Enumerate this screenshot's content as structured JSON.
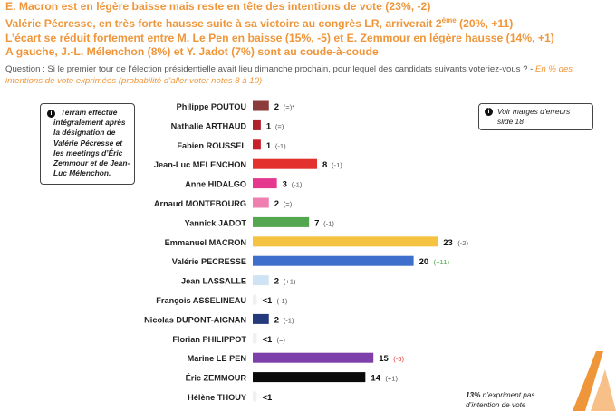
{
  "headline": {
    "line1": "E. Macron est en légère baisse mais reste en tête des intentions de vote (23%, -2)",
    "line2_prefix": "Valérie Pécresse, en très forte hausse suite à sa victoire au congrès LR, arriverait 2",
    "line2_sup": "ème",
    "line2_suffix": " (20%, +11)",
    "line3": "L’écart se réduit fortement entre M. Le Pen en baisse (15%, -5) et E. Zemmour en légère hausse  (14%, +1)",
    "line4": "A gauche, J.-L. Mélenchon (8%) et Y. Jadot (7%) sont au coude-à-coude"
  },
  "question": {
    "text": "Question : Si le premier tour de l’élection présidentielle avait lieu dimanche prochain, pour lequel des candidats suivants voteriez-vous ? - ",
    "subtext": "En % des intentions de vote exprimées (probabilité d’aller voter notes 8 à 10)"
  },
  "left_note": {
    "icon": "info-icon",
    "line1": "Terrain effectué",
    "line2": "intégralement après",
    "line3": "la désignation de",
    "line4": "Valérie Pécresse et",
    "line5": "les meetings d’Éric",
    "line6": "Zemmour et de Jean-",
    "line7": "Luc Mélenchon."
  },
  "right_note": {
    "icon": "info-icon",
    "line1": "Voir marges d’erreurs",
    "line2": "slide 18"
  },
  "bottom_note": {
    "bold": "13%",
    "text1": " n’expriment pas",
    "line2": "d’intention de vote"
  },
  "colors": {
    "headline": "#f0963a",
    "delta_positive": "#3aa640",
    "delta_negative": "#e0302c",
    "delta_neutral": "#555555"
  },
  "chart_data": {
    "type": "bar",
    "orientation": "horizontal",
    "categories": [
      "Philippe POUTOU",
      "Nathalie ARTHAUD",
      "Fabien ROUSSEL",
      "Jean-Luc MELENCHON",
      "Anne HIDALGO",
      "Arnaud MONTEBOURG",
      "Yannick JADOT",
      "Emmanuel MACRON",
      "Valérie PECRESSE",
      "Jean LASSALLE",
      "François ASSELINEAU",
      "Nicolas DUPONT-AIGNAN",
      "Florian PHILIPPOT",
      "Marine LE PEN",
      "Éric ZEMMOUR",
      "Hélène THOUY"
    ],
    "values": [
      2,
      1,
      1,
      8,
      3,
      2,
      7,
      23,
      20,
      2,
      0.5,
      2,
      0.5,
      15,
      14,
      0.5
    ],
    "value_labels": [
      "2",
      "1",
      "1",
      "8",
      "3",
      "2",
      "7",
      "23",
      "20",
      "2",
      "<1",
      "2",
      "<1",
      "15",
      "14",
      "<1"
    ],
    "changes": [
      "(=)*",
      "(=)",
      "(-1)",
      "(-1)",
      "(-1)",
      "(=)",
      "(-1)",
      "(-2)",
      "(+11)",
      "(+1)",
      "(-1)",
      "(-1)",
      "(=)",
      "(-5)",
      "(+1)",
      ""
    ],
    "change_types": [
      "neutral",
      "neutral",
      "neutral",
      "neutral",
      "neutral",
      "neutral",
      "neutral",
      "neutral",
      "positive",
      "neutral",
      "neutral",
      "neutral",
      "neutral",
      "negative",
      "neutral",
      "neutral"
    ],
    "colors": [
      "#8c3a3a",
      "#b0212a",
      "#c8202a",
      "#e3312d",
      "#e6378f",
      "#ee7fb0",
      "#53a84f",
      "#f5c242",
      "#3f6fcc",
      "#cfe3f4",
      "#f0f0f0",
      "#253a7a",
      "#f0f0f0",
      "#7d3fa9",
      "#0a0a0a",
      "#f0f0f0"
    ],
    "xlim": [
      0,
      25
    ],
    "unit": "%"
  }
}
